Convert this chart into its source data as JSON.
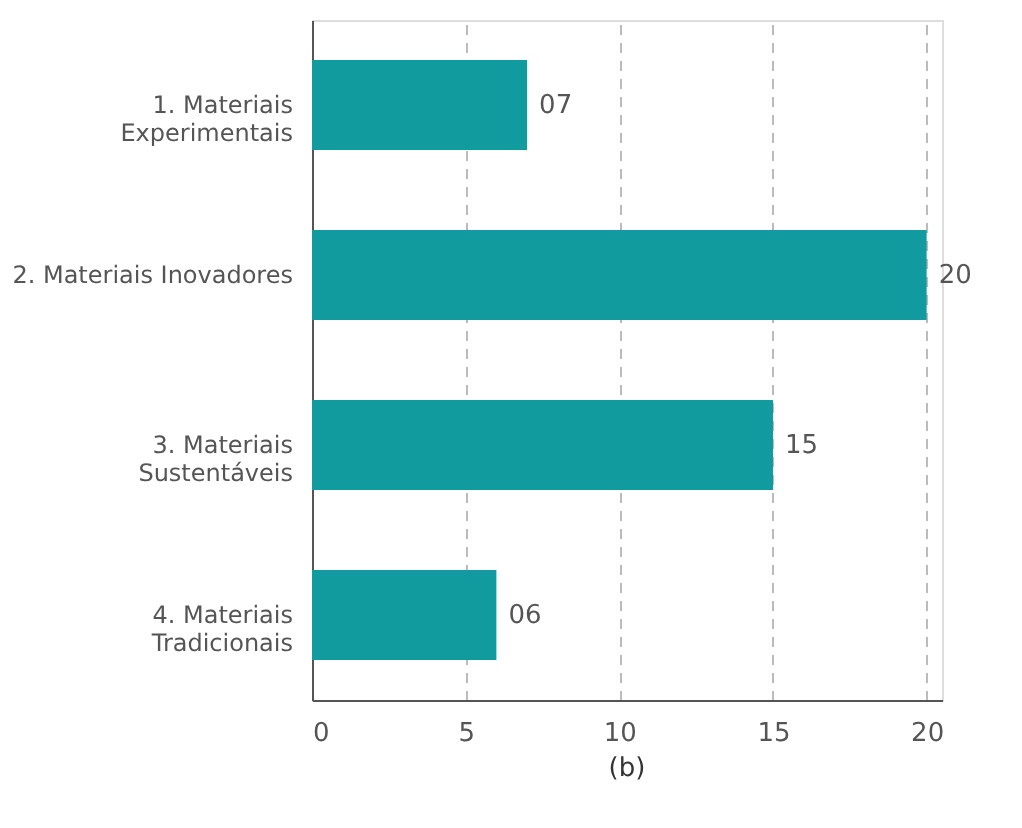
{
  "chart_data": {
    "type": "bar",
    "orientation": "horizontal",
    "categories": [
      "1. Materiais Experimentais",
      "2. Materiais Inovadores",
      "3. Materiais Sustentáveis",
      "4. Materiais Tradicionais"
    ],
    "values": [
      7,
      20,
      15,
      6
    ],
    "value_labels": [
      "07",
      "20",
      "15",
      "06"
    ],
    "color": "#119b9f",
    "xlim": [
      0,
      20.5
    ],
    "xticks": [
      0,
      5,
      10,
      15,
      20
    ],
    "grid": "x",
    "annotations": [
      "(b)"
    ]
  }
}
